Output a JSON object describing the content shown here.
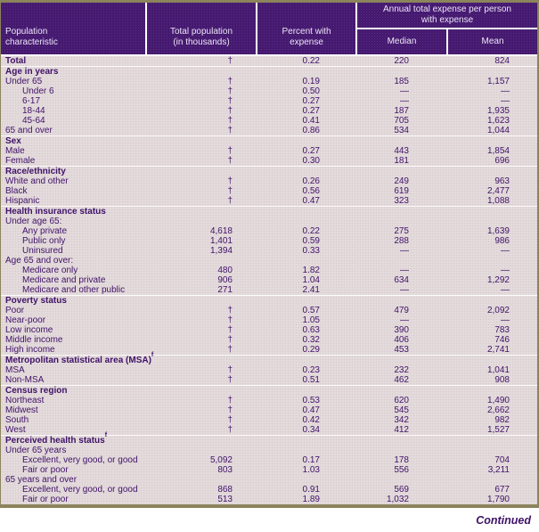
{
  "colors": {
    "header_bg": "#451a6e",
    "header_dot": "#5c2c92",
    "body_bg": "#e3dadb",
    "text_purple": "#3f1268",
    "frame_border": "#8c845c",
    "separator_line": "#ffffff"
  },
  "table": {
    "header": {
      "col_population_characteristic": "Population\ncharacteristic",
      "col_total_population": "Total population\n(in thousands)",
      "col_percent_with_expense": "Percent with\nexpense",
      "col_annual_group": "Annual total expense per person\nwith expense",
      "col_median": "Median",
      "col_mean": "Mean"
    },
    "dagger_symbol": "†",
    "missing_symbol": "—",
    "sections": [
      {
        "rows": [
          {
            "label": "Total",
            "bold": true,
            "indent": 0,
            "pop": "†",
            "pct": "0.22",
            "median": "220",
            "mean": "824"
          }
        ]
      },
      {
        "rows": [
          {
            "label": "Age in years",
            "bold": true,
            "indent": 0
          },
          {
            "label": "Under 65",
            "indent": 0,
            "pop": "†",
            "pct": "0.19",
            "median": "185",
            "mean": "1,157"
          },
          {
            "label": "Under 6",
            "indent": 1,
            "pop": "†",
            "pct": "0.50",
            "median": "—",
            "mean": "—"
          },
          {
            "label": "6-17",
            "indent": 1,
            "pop": "†",
            "pct": "0.27",
            "median": "—",
            "mean": "—"
          },
          {
            "label": "18-44",
            "indent": 1,
            "pop": "†",
            "pct": "0.27",
            "median": "187",
            "mean": "1,935"
          },
          {
            "label": "45-64",
            "indent": 1,
            "pop": "†",
            "pct": "0.41",
            "median": "705",
            "mean": "1,623"
          },
          {
            "label": "65 and over",
            "indent": 0,
            "pop": "†",
            "pct": "0.86",
            "median": "534",
            "mean": "1,044"
          }
        ]
      },
      {
        "rows": [
          {
            "label": "Sex",
            "bold": true,
            "indent": 0
          },
          {
            "label": "Male",
            "indent": 0,
            "pop": "†",
            "pct": "0.27",
            "median": "443",
            "mean": "1,854"
          },
          {
            "label": "Female",
            "indent": 0,
            "pop": "†",
            "pct": "0.30",
            "median": "181",
            "mean": "696"
          }
        ]
      },
      {
        "rows": [
          {
            "label": "Race/ethnicity",
            "bold": true,
            "indent": 0
          },
          {
            "label": "White and other",
            "indent": 0,
            "pop": "†",
            "pct": "0.26",
            "median": "249",
            "mean": "963"
          },
          {
            "label": "Black",
            "indent": 0,
            "pop": "†",
            "pct": "0.56",
            "median": "619",
            "mean": "2,477"
          },
          {
            "label": "Hispanic",
            "indent": 0,
            "pop": "†",
            "pct": "0.47",
            "median": "323",
            "mean": "1,088"
          }
        ]
      },
      {
        "rows": [
          {
            "label": "Health insurance status",
            "bold": true,
            "indent": 0
          },
          {
            "label": "Under age 65:",
            "indent": 0
          },
          {
            "label": "Any private",
            "indent": 1,
            "pop": "4,618",
            "pct": "0.22",
            "median": "275",
            "mean": "1,639"
          },
          {
            "label": "Public only",
            "indent": 1,
            "pop": "1,401",
            "pct": "0.59",
            "median": "288",
            "mean": "986"
          },
          {
            "label": "Uninsured",
            "indent": 1,
            "pop": "1,394",
            "pct": "0.33",
            "median": "—",
            "mean": "—"
          },
          {
            "label": "Age 65 and over:",
            "indent": 0
          },
          {
            "label": "Medicare only",
            "indent": 1,
            "pop": "480",
            "pct": "1.82",
            "median": "—",
            "mean": "—"
          },
          {
            "label": "Medicare and private",
            "indent": 1,
            "pop": "906",
            "pct": "1.04",
            "median": "634",
            "mean": "1,292"
          },
          {
            "label": "Medicare and other public",
            "indent": 1,
            "pop": "271",
            "pct": "2.41",
            "median": "—",
            "mean": "—"
          }
        ]
      },
      {
        "rows": [
          {
            "label": "Poverty status",
            "bold": true,
            "indent": 0
          },
          {
            "label": "Poor",
            "indent": 0,
            "pop": "†",
            "pct": "0.57",
            "median": "479",
            "mean": "2,092"
          },
          {
            "label": "Near-poor",
            "indent": 0,
            "pop": "†",
            "pct": "1.05",
            "median": "—",
            "mean": "—"
          },
          {
            "label": "Low income",
            "indent": 0,
            "pop": "†",
            "pct": "0.63",
            "median": "390",
            "mean": "783"
          },
          {
            "label": "Middle income",
            "indent": 0,
            "pop": "†",
            "pct": "0.32",
            "median": "406",
            "mean": "746"
          },
          {
            "label": "High income",
            "indent": 0,
            "pop": "†",
            "pct": "0.29",
            "median": "453",
            "mean": "2,741"
          }
        ]
      },
      {
        "rows": [
          {
            "label": "Metropolitan statistical area (MSA)",
            "sup": "f",
            "bold": true,
            "indent": 0
          },
          {
            "label": "MSA",
            "indent": 0,
            "pop": "†",
            "pct": "0.23",
            "median": "232",
            "mean": "1,041"
          },
          {
            "label": "Non-MSA",
            "indent": 0,
            "pop": "†",
            "pct": "0.51",
            "median": "462",
            "mean": "908"
          }
        ]
      },
      {
        "rows": [
          {
            "label": "Census region",
            "bold": true,
            "indent": 0
          },
          {
            "label": "Northeast",
            "indent": 0,
            "pop": "†",
            "pct": "0.53",
            "median": "620",
            "mean": "1,490"
          },
          {
            "label": "Midwest",
            "indent": 0,
            "pop": "†",
            "pct": "0.47",
            "median": "545",
            "mean": "2,662"
          },
          {
            "label": "South",
            "indent": 0,
            "pop": "†",
            "pct": "0.42",
            "median": "342",
            "mean": "982"
          },
          {
            "label": "West",
            "indent": 0,
            "pop": "†",
            "pct": "0.34",
            "median": "412",
            "mean": "1,527"
          }
        ]
      },
      {
        "rows": [
          {
            "label": "Perceived health status",
            "sup": "f",
            "bold": true,
            "indent": 0
          },
          {
            "label": "Under 65 years",
            "indent": 0
          },
          {
            "label": "Excellent, very good, or good",
            "indent": 1,
            "pop": "5,092",
            "pct": "0.17",
            "median": "178",
            "mean": "704"
          },
          {
            "label": "Fair or poor",
            "indent": 1,
            "pop": "803",
            "pct": "1.03",
            "median": "556",
            "mean": "3,211"
          },
          {
            "label": "65 years and over",
            "indent": 0
          },
          {
            "label": "Excellent, very good, or good",
            "indent": 1,
            "pop": "868",
            "pct": "0.91",
            "median": "569",
            "mean": "677"
          },
          {
            "label": "Fair or poor",
            "indent": 1,
            "pop": "513",
            "pct": "1.89",
            "median": "1,032",
            "mean": "1,790"
          }
        ]
      }
    ]
  },
  "footer": {
    "continued_label": "Continued"
  }
}
